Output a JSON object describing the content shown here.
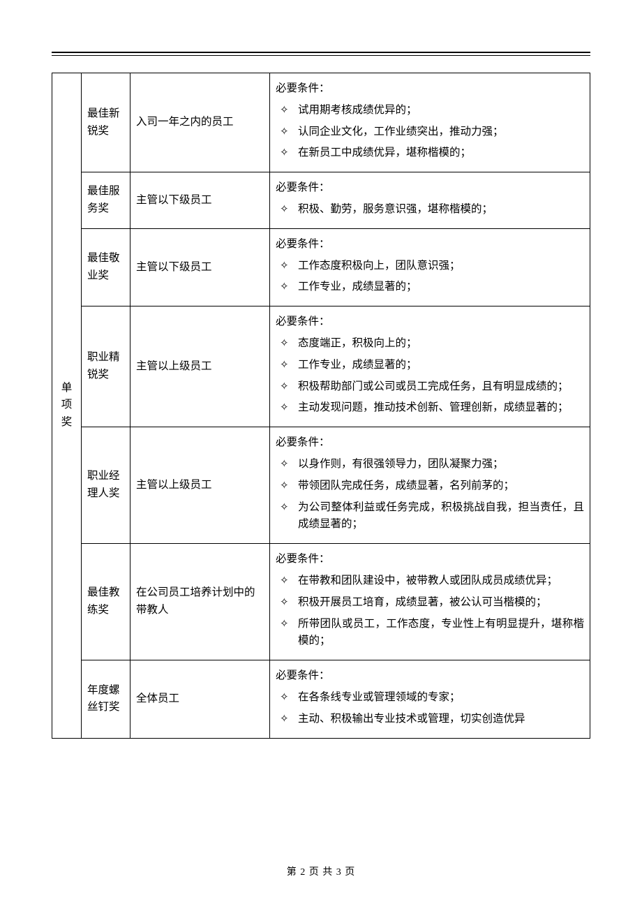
{
  "category_label": "单项奖",
  "footer": "第 2 页 共 3 页",
  "cond_title": "必要条件：",
  "rows": [
    {
      "name": "最佳新锐奖",
      "scope": "入司一年之内的员工",
      "items": [
        "试用期考核成绩优异的；",
        "认同企业文化，工作业绩突出，推动力强；",
        "在新员工中成绩优异，堪称楷模的；"
      ]
    },
    {
      "name": "最佳服务奖",
      "scope": "主管以下级员工",
      "items": [
        "积极、勤劳，服务意识强，堪称楷模的；"
      ]
    },
    {
      "name": "最佳敬业奖",
      "scope": "主管以下级员工",
      "items": [
        "工作态度积极向上，团队意识强；",
        "工作专业，成绩显著的；"
      ]
    },
    {
      "name": "职业精锐奖",
      "scope": "主管以上级员工",
      "items": [
        "态度端正，积极向上的；",
        "工作专业，成绩显著的；",
        "积极帮助部门或公司或员工完成任务，且有明显成绩的；",
        "主动发现问题，推动技术创新、管理创新，成绩显著的；"
      ]
    },
    {
      "name": "职业经理人奖",
      "scope": "主管以上级员工",
      "items": [
        "以身作则，有很强领导力，团队凝聚力强；",
        "带领团队完成任务，成绩显著，名列前茅的；",
        "为公司整体利益或任务完成，积极挑战自我，担当责任，且成绩显著的；"
      ]
    },
    {
      "name": "最佳教练奖",
      "scope": "在公司员工培养计划中的带教人",
      "items": [
        "在带教和团队建设中，被带教人或团队成员成绩优异；",
        "积极开展员工培育，成绩显著，被公认可当楷模的；",
        "所带团队或员工，工作态度，专业性上有明显提升，堪称楷模的；"
      ]
    },
    {
      "name": "年度螺丝钉奖",
      "scope": "全体员工",
      "items": [
        "在各条线专业或管理领域的专家；",
        "主动、积极输出专业技术或管理，切实创造优异"
      ]
    }
  ]
}
